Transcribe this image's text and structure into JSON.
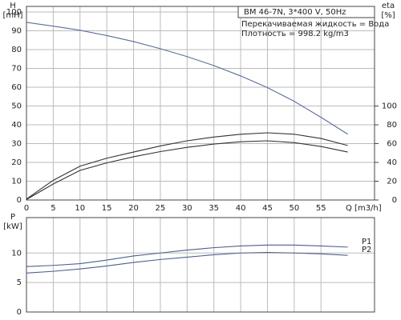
{
  "chart_data": [
    {
      "type": "line",
      "ylabel": "H",
      "yunit": "[mH]",
      "y2label": "eta",
      "y2unit": "[%]",
      "xlabel": "Q [m3/h]",
      "title": "BM 46-7N, 3*400 V, 50Hz",
      "annotations": [
        "Перекачиваемая жидкость = Вода",
        "Плотность = 998.2 kg/m3"
      ],
      "x": [
        0,
        5,
        10,
        15,
        20,
        25,
        30,
        35,
        40,
        45,
        50,
        55,
        60
      ],
      "xlim": [
        0,
        65
      ],
      "xticks": [
        0,
        5,
        10,
        15,
        20,
        25,
        30,
        35,
        40,
        45,
        50,
        55
      ],
      "ylim": [
        0,
        103
      ],
      "yticks": [
        0,
        10,
        20,
        30,
        40,
        50,
        60,
        70,
        80,
        90,
        100
      ],
      "y2lim": [
        0,
        206
      ],
      "y2ticks": [
        0,
        20,
        40,
        60,
        80,
        100
      ],
      "grid": true,
      "series": [
        {
          "color": "#5a6e9a",
          "values": [
            94.5,
            92.5,
            90.3,
            87.5,
            84.3,
            80.5,
            76.3,
            71.5,
            66,
            59.8,
            52.5,
            44,
            35
          ]
        },
        {
          "color": "#333333",
          "axis": "y2",
          "values": [
            1,
            21,
            36,
            44.5,
            51,
            57.5,
            63,
            67,
            70,
            71.5,
            70,
            65.5,
            58
          ]
        },
        {
          "color": "#333333",
          "axis": "y2",
          "values": [
            0.5,
            17,
            31.5,
            39.5,
            46,
            51.5,
            56,
            59.5,
            62,
            63,
            61,
            57,
            51
          ]
        }
      ]
    },
    {
      "type": "line",
      "ylabel": "P",
      "yunit": "[kW]",
      "x": [
        0,
        5,
        10,
        15,
        20,
        25,
        30,
        35,
        40,
        45,
        50,
        55,
        60
      ],
      "xlim": [
        0,
        65
      ],
      "ylim": [
        0,
        16
      ],
      "yticks": [
        0,
        5,
        10
      ],
      "grid": true,
      "series": [
        {
          "name": "P1",
          "color": "#4a5f8e",
          "values": [
            7.7,
            7.9,
            8.2,
            8.8,
            9.5,
            10,
            10.5,
            10.9,
            11.2,
            11.35,
            11.35,
            11.2,
            11
          ]
        },
        {
          "name": "P2",
          "color": "#4a5f8e",
          "values": [
            6.6,
            6.9,
            7.3,
            7.8,
            8.4,
            8.9,
            9.3,
            9.7,
            10,
            10.1,
            10,
            9.85,
            9.6
          ]
        }
      ]
    }
  ]
}
